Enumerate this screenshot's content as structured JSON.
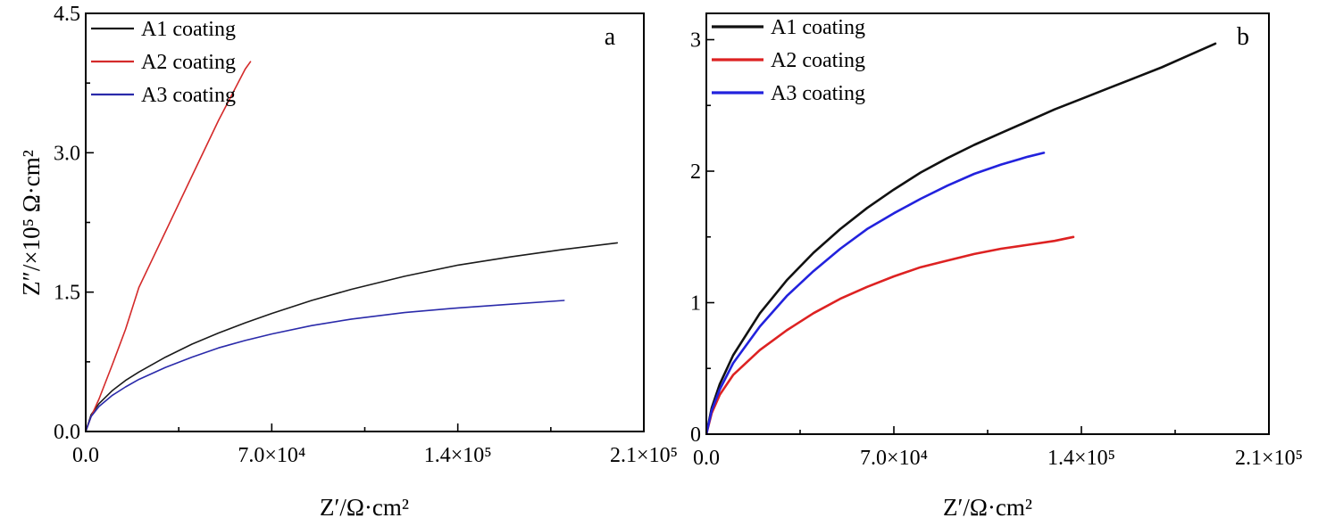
{
  "chart_data": [
    {
      "type": "line",
      "panel_label": "a",
      "xlabel": "Z′/Ω·cm²",
      "ylabel": "Z″/×10⁵ Ω·cm²",
      "xlim": [
        0,
        210000
      ],
      "ylim": [
        0,
        4.5
      ],
      "x_ticks": [
        0,
        70000,
        140000,
        210000
      ],
      "x_tick_labels": [
        "0.0",
        "7.0×10⁴",
        "1.4×10⁵",
        "2.1×10⁵"
      ],
      "y_ticks": [
        0,
        1.5,
        3.0,
        4.5
      ],
      "y_tick_labels": [
        "0.0",
        "1.5",
        "3.0",
        "4.5"
      ],
      "legend_position": "top-left",
      "series": [
        {
          "name": "A1 coating",
          "color": "#1a1a1a",
          "x": [
            0,
            2000,
            5000,
            10000,
            15000,
            20000,
            30000,
            40000,
            50000,
            60000,
            70000,
            85000,
            100000,
            120000,
            140000,
            160000,
            180000,
            200000
          ],
          "y": [
            0,
            0.18,
            0.3,
            0.44,
            0.55,
            0.64,
            0.8,
            0.94,
            1.06,
            1.17,
            1.27,
            1.41,
            1.53,
            1.67,
            1.79,
            1.88,
            1.96,
            2.03
          ]
        },
        {
          "name": "A2 coating",
          "color": "#d42a2a",
          "x": [
            0,
            2000,
            5000,
            10000,
            15000,
            20000,
            25000,
            30000,
            40000,
            50000,
            60000,
            62000
          ],
          "y": [
            0,
            0.16,
            0.35,
            0.72,
            1.1,
            1.55,
            1.85,
            2.15,
            2.75,
            3.35,
            3.9,
            3.98
          ]
        },
        {
          "name": "A3 coating",
          "color": "#2a2aaa",
          "x": [
            0,
            2000,
            5000,
            10000,
            15000,
            20000,
            30000,
            40000,
            50000,
            60000,
            70000,
            85000,
            100000,
            120000,
            140000,
            160000,
            180000
          ],
          "y": [
            0,
            0.16,
            0.27,
            0.39,
            0.48,
            0.56,
            0.69,
            0.8,
            0.9,
            0.98,
            1.05,
            1.14,
            1.21,
            1.28,
            1.33,
            1.37,
            1.41
          ]
        }
      ]
    },
    {
      "type": "line",
      "panel_label": "b",
      "xlabel": "Z′/Ω·cm²",
      "ylabel": "",
      "xlim": [
        0,
        210000
      ],
      "ylim": [
        0,
        3.2
      ],
      "x_ticks": [
        0,
        70000,
        140000,
        210000
      ],
      "x_tick_labels": [
        "0.0",
        "7.0×10⁴",
        "1.4×10⁵",
        "2.1×10⁵"
      ],
      "y_ticks": [
        0,
        1,
        2,
        3
      ],
      "y_tick_labels": [
        "0",
        "1",
        "2",
        "3"
      ],
      "legend_position": "top-left",
      "series": [
        {
          "name": "A1 coating",
          "color": "#111111",
          "x": [
            0,
            2000,
            5000,
            10000,
            20000,
            30000,
            40000,
            50000,
            60000,
            70000,
            80000,
            90000,
            100000,
            110000,
            120000,
            130000,
            140000,
            150000,
            160000,
            170000,
            180000,
            190000
          ],
          "y": [
            0,
            0.2,
            0.38,
            0.6,
            0.92,
            1.17,
            1.38,
            1.56,
            1.72,
            1.86,
            1.99,
            2.1,
            2.2,
            2.29,
            2.38,
            2.47,
            2.55,
            2.63,
            2.71,
            2.79,
            2.88,
            2.97
          ]
        },
        {
          "name": "A2 coating",
          "color": "#dd2222",
          "x": [
            0,
            2000,
            5000,
            10000,
            20000,
            30000,
            40000,
            50000,
            60000,
            70000,
            80000,
            90000,
            100000,
            110000,
            120000,
            130000,
            137000
          ],
          "y": [
            0,
            0.16,
            0.3,
            0.45,
            0.64,
            0.79,
            0.92,
            1.03,
            1.12,
            1.2,
            1.27,
            1.32,
            1.37,
            1.41,
            1.44,
            1.47,
            1.5
          ]
        },
        {
          "name": "A3 coating",
          "color": "#2222dd",
          "x": [
            0,
            2000,
            5000,
            10000,
            20000,
            30000,
            40000,
            50000,
            60000,
            70000,
            80000,
            90000,
            100000,
            110000,
            120000,
            126000
          ],
          "y": [
            0,
            0.18,
            0.34,
            0.54,
            0.82,
            1.05,
            1.24,
            1.41,
            1.56,
            1.68,
            1.79,
            1.89,
            1.98,
            2.05,
            2.11,
            2.14
          ]
        }
      ]
    }
  ]
}
